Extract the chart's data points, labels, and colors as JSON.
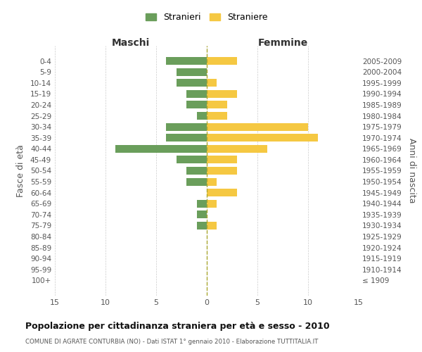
{
  "age_groups": [
    "0-4",
    "5-9",
    "10-14",
    "15-19",
    "20-24",
    "25-29",
    "30-34",
    "35-39",
    "40-44",
    "45-49",
    "50-54",
    "55-59",
    "60-64",
    "65-69",
    "70-74",
    "75-79",
    "80-84",
    "85-89",
    "90-94",
    "95-99",
    "100+"
  ],
  "birth_years": [
    "2005-2009",
    "2000-2004",
    "1995-1999",
    "1990-1994",
    "1985-1989",
    "1980-1984",
    "1975-1979",
    "1970-1974",
    "1965-1969",
    "1960-1964",
    "1955-1959",
    "1950-1954",
    "1945-1949",
    "1940-1944",
    "1935-1939",
    "1930-1934",
    "1925-1929",
    "1920-1924",
    "1915-1919",
    "1910-1914",
    "≤ 1909"
  ],
  "males": [
    4,
    3,
    3,
    2,
    2,
    1,
    4,
    4,
    9,
    3,
    2,
    2,
    0,
    1,
    1,
    1,
    0,
    0,
    0,
    0,
    0
  ],
  "females": [
    3,
    0,
    1,
    3,
    2,
    2,
    10,
    11,
    6,
    3,
    3,
    1,
    3,
    1,
    0,
    1,
    0,
    0,
    0,
    0,
    0
  ],
  "male_color": "#6a9e5b",
  "female_color": "#f5c842",
  "title": "Popolazione per cittadinanza straniera per età e sesso - 2010",
  "subtitle": "COMUNE DI AGRATE CONTURBIA (NO) - Dati ISTAT 1° gennaio 2010 - Elaborazione TUTTITALIA.IT",
  "xlabel_left": "Maschi",
  "xlabel_right": "Femmine",
  "ylabel_left": "Fasce di età",
  "ylabel_right": "Anni di nascita",
  "legend_male": "Stranieri",
  "legend_female": "Straniere",
  "xlim": 15,
  "background_color": "#ffffff",
  "grid_color": "#cccccc"
}
